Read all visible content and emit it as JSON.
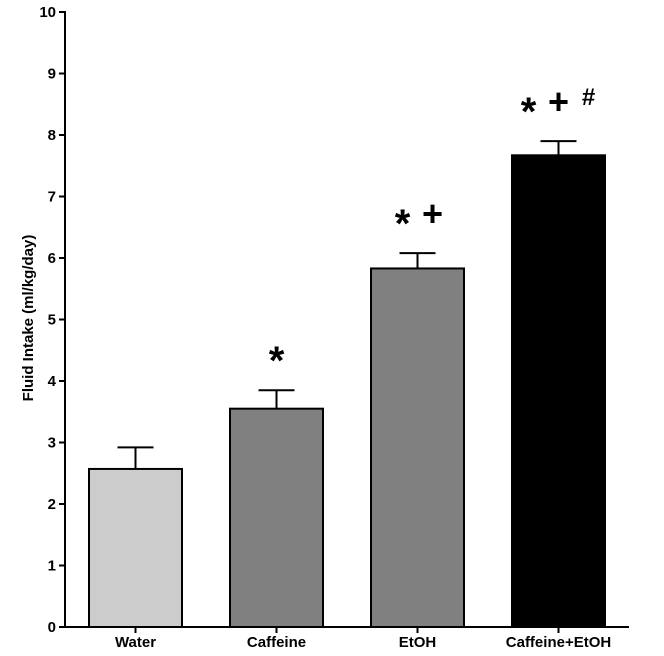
{
  "chart_data": {
    "type": "bar",
    "categories": [
      "Water",
      "Caffeine",
      "EtOH",
      "Caffeine+EtOH"
    ],
    "values": [
      2.57,
      3.55,
      5.83,
      7.67
    ],
    "errors": [
      0.35,
      0.3,
      0.25,
      0.23
    ],
    "bar_colors": [
      "#cccccc",
      "#808080",
      "#808080",
      "#000000"
    ],
    "annotations": [
      {
        "category": "Water",
        "marks": []
      },
      {
        "category": "Caffeine",
        "marks": [
          "*"
        ]
      },
      {
        "category": "EtOH",
        "marks": [
          "*",
          "+"
        ]
      },
      {
        "category": "Caffeine+EtOH",
        "marks": [
          "*",
          "+",
          "#"
        ]
      }
    ],
    "ylabel": "Fluid Intake (ml/kg/day)",
    "xlabel": "",
    "ylim": [
      0,
      10
    ],
    "yticks": [
      "0",
      "1",
      "2",
      "3",
      "4",
      "5",
      "6",
      "7",
      "8",
      "9",
      "10"
    ],
    "grid": false
  }
}
